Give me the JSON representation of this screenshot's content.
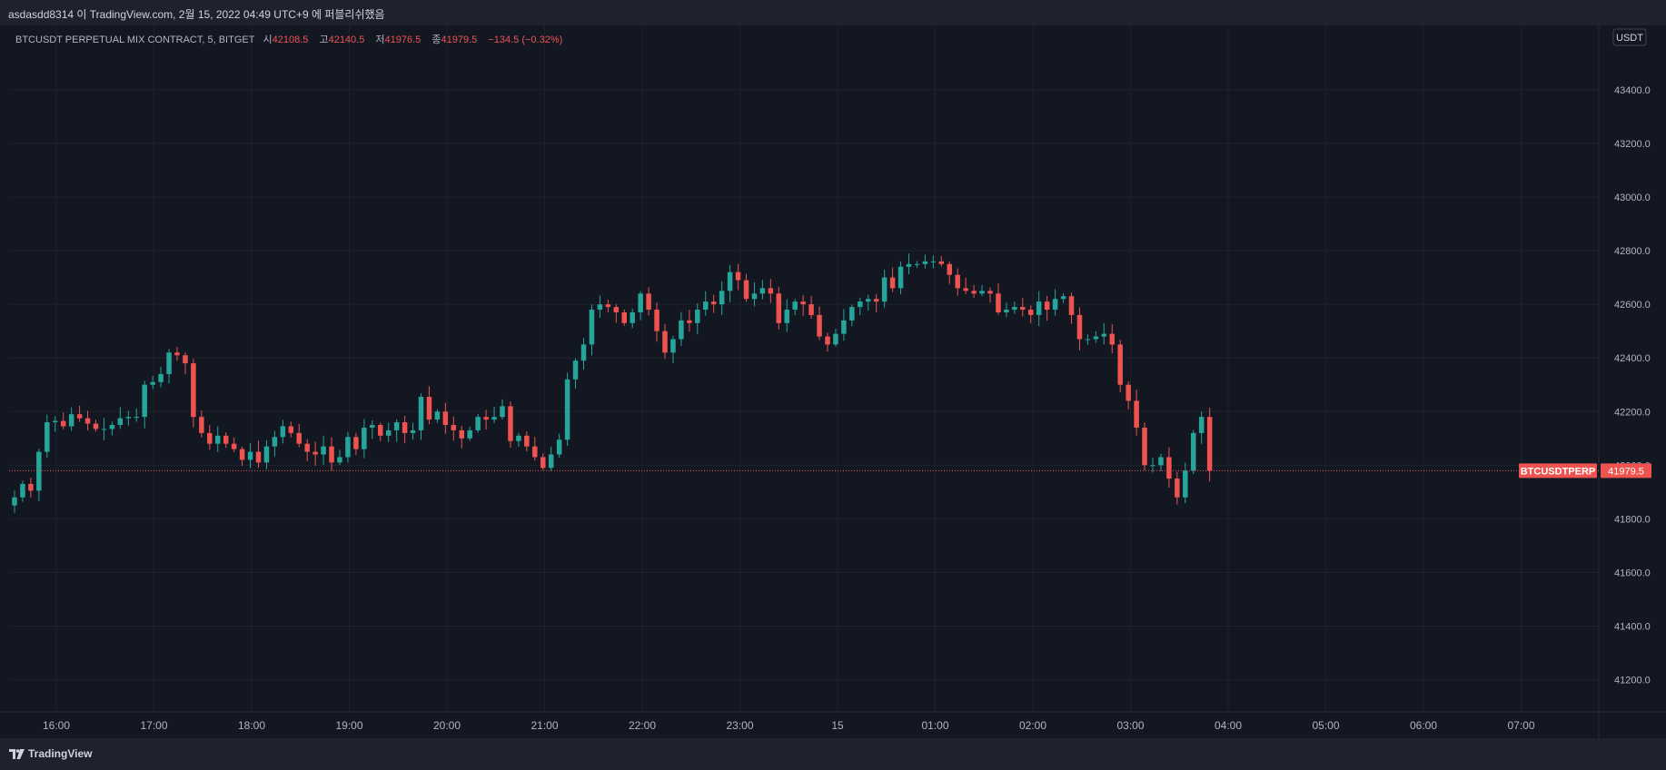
{
  "header": {
    "publish_note": "asdasdd8314 이 TradingView.com, 2월 15, 2022 04:49 UTC+9 에 퍼블리쉬했음"
  },
  "legend": {
    "symbol": "BTCUSDT PERPETUAL MIX CONTRACT, 5, BITGET",
    "open_label": "시",
    "open_value": "42108.5",
    "high_label": "고",
    "high_value": "42140.5",
    "low_label": "저",
    "low_value": "41976.5",
    "close_label": "종",
    "close_value": "41979.5",
    "change": "−134.5 (−0.32%)"
  },
  "price_axis": {
    "currency": "USDT",
    "last_price_label": "41979.5",
    "symbol_tag": "BTCUSDTPERP"
  },
  "footer": {
    "brand": "TradingView"
  },
  "colors": {
    "up": "#26a69a",
    "down": "#ef5350",
    "background": "#131722",
    "grid": "#1e222d"
  },
  "chart_data": {
    "type": "candlestick",
    "interval": "5",
    "ylim": [
      41080,
      43640
    ],
    "y_ticks": [
      "41200.0",
      "41400.0",
      "41600.0",
      "41800.0",
      "42000.0",
      "42200.0",
      "42400.0",
      "42600.0",
      "42800.0",
      "43000.0",
      "43200.0",
      "43400.0"
    ],
    "x_ticks": [
      "16:00",
      "17:00",
      "18:00",
      "19:00",
      "20:00",
      "21:00",
      "22:00",
      "23:00",
      "15",
      "01:00",
      "02:00",
      "03:00",
      "04:00",
      "05:00",
      "06:00",
      "07:00"
    ],
    "last_price": 41979.5,
    "close_series": [
      41880,
      41930,
      41905,
      42050,
      42160,
      42165,
      42145,
      42190,
      42175,
      42155,
      42135,
      42135,
      42150,
      42175,
      42180,
      42180,
      42300,
      42310,
      42340,
      42420,
      42410,
      42380,
      42180,
      42120,
      42080,
      42110,
      42080,
      42060,
      42020,
      42050,
      42010,
      42070,
      42105,
      42145,
      42120,
      42080,
      42050,
      42040,
      42070,
      42010,
      42030,
      42105,
      42060,
      42140,
      42150,
      42110,
      42130,
      42160,
      42120,
      42130,
      42255,
      42170,
      42200,
      42150,
      42130,
      42100,
      42130,
      42180,
      42170,
      42180,
      42220,
      42090,
      42110,
      42070,
      42030,
      41990,
      42040,
      42095,
      42320,
      42390,
      42450,
      42580,
      42600,
      42590,
      42570,
      42530,
      42570,
      42640,
      42580,
      42500,
      42420,
      42470,
      42540,
      42530,
      42580,
      42610,
      42600,
      42650,
      42720,
      42690,
      42620,
      42640,
      42660,
      42640,
      42530,
      42580,
      42610,
      42600,
      42560,
      42480,
      42450,
      42490,
      42540,
      42590,
      42610,
      42620,
      42610,
      42700,
      42660,
      42740,
      42750,
      42750,
      42760,
      42760,
      42750,
      42710,
      42660,
      42650,
      42640,
      42650,
      42640,
      42570,
      42580,
      42590,
      42580,
      42560,
      42610,
      42580,
      42620,
      42630,
      42560,
      42470,
      42470,
      42480,
      42490,
      42450,
      42300,
      42240,
      42140,
      42000,
      42000,
      42030,
      41950,
      41880,
      41980,
      42120,
      42180,
      41979.5
    ]
  }
}
